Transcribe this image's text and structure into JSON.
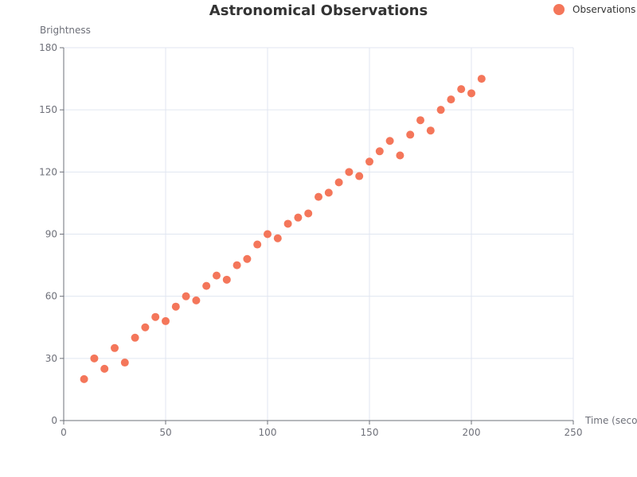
{
  "chart_data": {
    "type": "scatter",
    "title": "Astronomical Observations",
    "xlabel": "Time (seconds)",
    "ylabel": "Brightness",
    "xlim": [
      0,
      250
    ],
    "ylim": [
      0,
      180
    ],
    "x_ticks": [
      0,
      50,
      100,
      150,
      200,
      250
    ],
    "y_ticks": [
      0,
      30,
      60,
      90,
      120,
      150,
      180
    ],
    "grid": true,
    "legend_position": "top-right",
    "series": [
      {
        "name": "Observations",
        "color": "#f4765a",
        "points": [
          [
            10,
            20
          ],
          [
            15,
            30
          ],
          [
            20,
            25
          ],
          [
            25,
            35
          ],
          [
            30,
            28
          ],
          [
            35,
            40
          ],
          [
            40,
            45
          ],
          [
            45,
            50
          ],
          [
            50,
            48
          ],
          [
            55,
            55
          ],
          [
            60,
            60
          ],
          [
            65,
            58
          ],
          [
            70,
            65
          ],
          [
            75,
            70
          ],
          [
            80,
            68
          ],
          [
            85,
            75
          ],
          [
            90,
            78
          ],
          [
            95,
            85
          ],
          [
            100,
            90
          ],
          [
            105,
            88
          ],
          [
            110,
            95
          ],
          [
            115,
            98
          ],
          [
            120,
            100
          ],
          [
            125,
            108
          ],
          [
            130,
            110
          ],
          [
            135,
            115
          ],
          [
            140,
            120
          ],
          [
            145,
            118
          ],
          [
            150,
            125
          ],
          [
            155,
            130
          ],
          [
            160,
            135
          ],
          [
            165,
            128
          ],
          [
            170,
            138
          ],
          [
            175,
            145
          ],
          [
            180,
            140
          ],
          [
            185,
            150
          ],
          [
            190,
            155
          ],
          [
            195,
            160
          ],
          [
            200,
            158
          ],
          [
            205,
            165
          ]
        ]
      }
    ]
  }
}
